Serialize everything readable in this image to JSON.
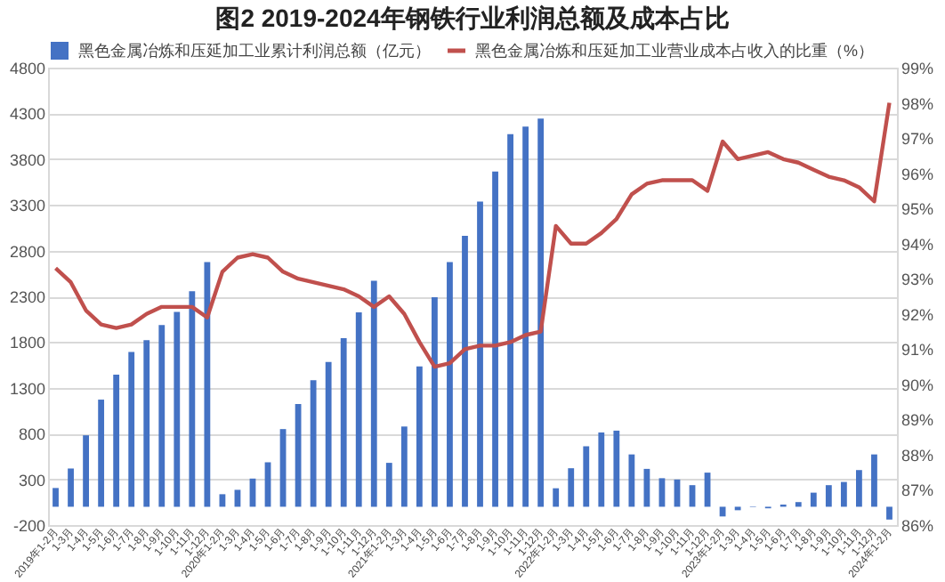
{
  "chart_data": {
    "type": "bar",
    "title": "图2 2019-2024年钢铁行业利润总额及成本占比",
    "categories": [
      "2019年1-2月",
      "1-3月",
      "1-4月",
      "1-5月",
      "1-6月",
      "1-7月",
      "1-8月",
      "1-9月",
      "1-10月",
      "1-11月",
      "1-12月",
      "2020年1-2月",
      "1-3月",
      "1-4月",
      "1-5月",
      "1-6月",
      "1-7月",
      "1-8月",
      "1-9月",
      "1-10月",
      "1-11月",
      "1-12月",
      "2021年1-2月",
      "1-3月",
      "1-4月",
      "1-5月",
      "1-6月",
      "1-7月",
      "1-8月",
      "1-9月",
      "1-10月",
      "1-11月",
      "1-12月",
      "2022年1-2月",
      "1-3月",
      "1-4月",
      "1-5月",
      "1-6月",
      "1-7月",
      "1-8月",
      "1-9月",
      "1-10月",
      "1-11月",
      "1-12月",
      "2023年1-2月",
      "1-3月",
      "1-4月",
      "1-5月",
      "1-6月",
      "1-7月",
      "1-8月",
      "1-9月",
      "1-10月",
      "1-11月",
      "1-12月",
      "2024年1-2月"
    ],
    "series": [
      {
        "name": "黑色金属冶炼和压延加工业累计利润总额（亿元）",
        "color": "#4472c4",
        "values": [
          205,
          418,
          781,
          1171,
          1445,
          1692,
          1822,
          1986,
          2130,
          2356,
          2675,
          137,
          185,
          308,
          486,
          849,
          1123,
          1384,
          1582,
          1843,
          2124,
          2470,
          480,
          877,
          1534,
          2290,
          2675,
          2961,
          3337,
          3665,
          4074,
          4155,
          4243,
          202,
          421,
          661,
          812,
          832,
          572,
          414,
          312,
          298,
          236,
          373,
          -106,
          -38,
          -5,
          -17,
          24,
          51,
          154,
          236,
          271,
          401,
          572,
          -140
        ]
      },
      {
        "name": "黑色金属冶炼和压延加工业营业成本占收入的比重（%）",
        "type": "line",
        "axis": "y2",
        "color": "#c0504d",
        "values": [
          93.3,
          92.9,
          92.1,
          91.7,
          91.6,
          91.7,
          92.0,
          92.2,
          92.2,
          92.2,
          91.9,
          93.2,
          93.6,
          93.7,
          93.6,
          93.2,
          93.0,
          92.9,
          92.8,
          92.7,
          92.5,
          92.2,
          92.5,
          92.0,
          91.2,
          90.5,
          90.6,
          91.0,
          91.1,
          91.1,
          91.2,
          91.4,
          91.5,
          94.5,
          94.0,
          94.0,
          94.3,
          94.7,
          95.4,
          95.7,
          95.8,
          95.8,
          95.8,
          95.5,
          96.9,
          96.4,
          96.5,
          96.6,
          96.4,
          96.3,
          96.1,
          95.9,
          95.8,
          95.6,
          95.2,
          98.0
        ]
      }
    ],
    "ylim": [
      -200,
      4800
    ],
    "yticks": [
      -200,
      300,
      800,
      1300,
      1800,
      2300,
      2800,
      3300,
      3800,
      4300,
      4800
    ],
    "y2lim": [
      86,
      99
    ],
    "y2ticks": [
      {
        "value": 86,
        "label": "86%"
      },
      {
        "value": 87,
        "label": "87%"
      },
      {
        "value": 88,
        "label": "88%"
      },
      {
        "value": 89,
        "label": "89%"
      },
      {
        "value": 90,
        "label": "90%"
      },
      {
        "value": 91,
        "label": "91%"
      },
      {
        "value": 92,
        "label": "92%"
      },
      {
        "value": 93,
        "label": "93%"
      },
      {
        "value": 94,
        "label": "94%"
      },
      {
        "value": 95,
        "label": "95%"
      },
      {
        "value": 96,
        "label": "96%"
      },
      {
        "value": 97,
        "label": "97%"
      },
      {
        "value": 98,
        "label": "98%"
      },
      {
        "value": 99,
        "label": "99%"
      }
    ],
    "grid": "y",
    "legend": "top",
    "marker": "none",
    "line_style": "solid"
  }
}
